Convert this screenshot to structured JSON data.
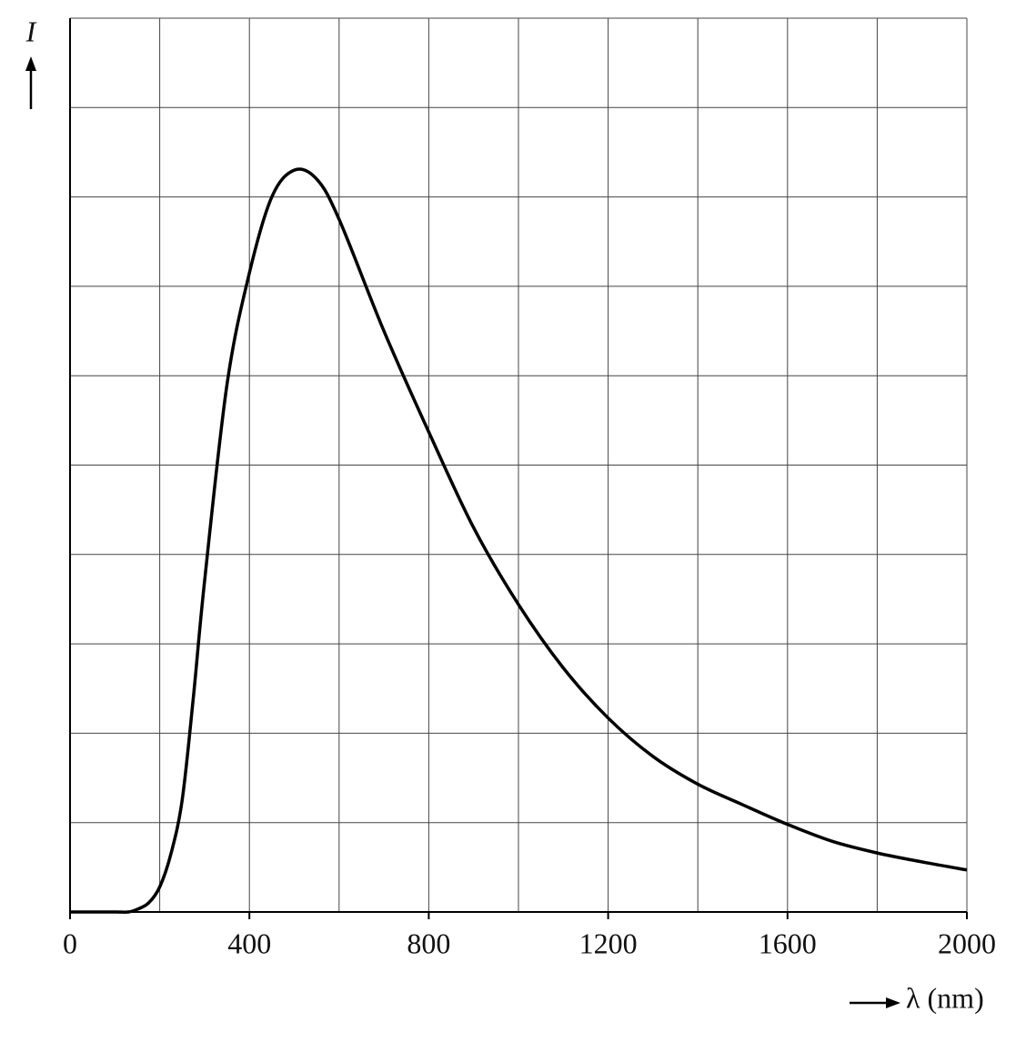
{
  "chart_data": {
    "type": "line",
    "y_label": "I",
    "x_label": "λ (nm)",
    "xlim": [
      0,
      2000
    ],
    "xticks": [
      0,
      400,
      800,
      1200,
      1600,
      2000
    ],
    "xgrid": [
      0,
      200,
      400,
      600,
      800,
      1000,
      1200,
      1400,
      1600,
      1800,
      2000
    ],
    "ylim": [
      0,
      10
    ],
    "ygrid": [
      0,
      1,
      2,
      3,
      4,
      5,
      6,
      7,
      8,
      9,
      10
    ],
    "grid": true,
    "color": "#000000",
    "x": [
      0,
      100,
      130,
      150,
      175,
      200,
      225,
      250,
      275,
      300,
      350,
      400,
      450,
      500,
      550,
      600,
      700,
      800,
      900,
      1000,
      1100,
      1200,
      1300,
      1400,
      1500,
      1600,
      1700,
      1800,
      1900,
      2000
    ],
    "values": [
      0,
      0,
      0,
      0.03,
      0.1,
      0.28,
      0.65,
      1.25,
      2.4,
      3.7,
      5.9,
      7.15,
      8.0,
      8.3,
      8.2,
      7.75,
      6.5,
      5.37,
      4.3,
      3.44,
      2.73,
      2.17,
      1.74,
      1.43,
      1.2,
      0.98,
      0.79,
      0.66,
      0.56,
      0.47
    ]
  }
}
